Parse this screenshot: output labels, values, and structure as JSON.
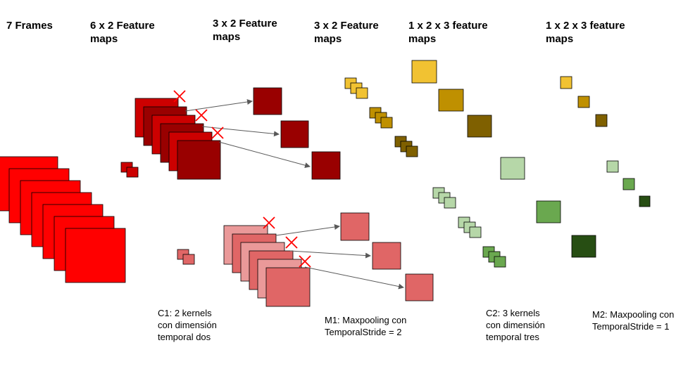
{
  "headers": [
    "7 Frames",
    "6 x 2 Feature\nmaps",
    "3 x 2 Feature\nmaps",
    "3 x 2 Feature\nmaps",
    "1 x 2 x 3 feature\nmaps",
    "1 x 2 x 3 feature\nmaps"
  ],
  "captions": {
    "c1": "C1: 2 kernels\ncon dimensión\ntemporal dos",
    "m1": "M1: Maxpooling con\nTemporalStride = 2",
    "c2": "C2: 3 kernels\ncon dimensión\ntemporal tres",
    "m2": "M2: Maxpooling con\nTemporalStride = 1"
  },
  "colors": {
    "frame_red": "#ff0000",
    "dark_red": "#990000",
    "red_mid": "#cc0000",
    "pink": "#e06666",
    "light_pink": "#ea9999",
    "yellow": "#f1c232",
    "gold": "#bf9000",
    "dark_gold": "#7f6000",
    "light_green": "#b6d7a8",
    "green": "#6aa84f",
    "dark_green": "#274e13",
    "cross_red": "#ff0000",
    "arrow_gray": "#595959"
  },
  "icons": [
    "cross-mark-icon",
    "arrow-icon"
  ]
}
